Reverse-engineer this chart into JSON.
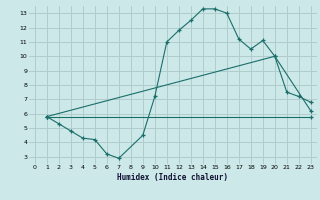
{
  "xlabel": "Humidex (Indice chaleur)",
  "xlim": [
    -0.5,
    23.5
  ],
  "ylim": [
    2.5,
    13.5
  ],
  "xticks": [
    0,
    1,
    2,
    3,
    4,
    5,
    6,
    7,
    8,
    9,
    10,
    11,
    12,
    13,
    14,
    15,
    16,
    17,
    18,
    19,
    20,
    21,
    22,
    23
  ],
  "yticks": [
    3,
    4,
    5,
    6,
    7,
    8,
    9,
    10,
    11,
    12,
    13
  ],
  "bg_color": "#cce8e8",
  "grid_color": "#b0cccc",
  "line_color": "#1a6e6a",
  "line1_x": [
    1,
    2,
    3,
    4,
    5,
    6,
    7,
    9,
    10,
    11,
    12,
    13,
    14,
    15,
    16,
    17,
    18,
    19,
    20,
    21,
    22,
    23
  ],
  "line1_y": [
    5.8,
    5.3,
    4.8,
    4.3,
    4.2,
    3.2,
    2.9,
    4.5,
    7.2,
    11.0,
    11.8,
    12.5,
    13.3,
    13.3,
    13.0,
    11.2,
    10.5,
    11.1,
    10.0,
    7.5,
    7.2,
    6.8
  ],
  "line2_x": [
    1,
    20,
    23
  ],
  "line2_y": [
    5.8,
    10.0,
    6.2
  ],
  "line3_x": [
    1,
    23
  ],
  "line3_y": [
    5.8,
    5.8
  ]
}
